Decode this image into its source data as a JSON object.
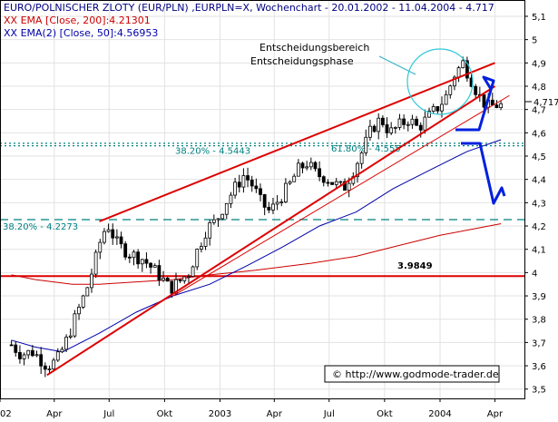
{
  "header": {
    "title": "EURO/POLNISCHER ZLOTY (EUR/PLN) ,EURPLN=X, Wochenchart - 20.01.2002 - 11.04.2004 - 4.717",
    "ema200": "EMA [Close, 200]:4.21301",
    "ema50": "EMA(2) [Close, 50]:4.56953",
    "ema_prefix": "XX"
  },
  "chart_data": {
    "type": "line",
    "title": "EURO/POLNISCHER ZLOTY (EUR/PLN) ,EURPLN=X, Wochenchart - 20.01.2002 - 11.04.2004 - 4.717",
    "xlabel": "",
    "ylabel": "",
    "ylim": [
      3.46,
      5.17
    ],
    "y_ticks": [
      3.5,
      3.6,
      3.7,
      3.8,
      3.9,
      4,
      4.1,
      4.2,
      4.3,
      4.4,
      4.5,
      4.6,
      4.7,
      4.8,
      4.9,
      5,
      5.1
    ],
    "y_tick_labels": [
      "3,5",
      "3,6",
      "3,7",
      "3,8",
      "3,9",
      "4",
      "4,1",
      "4,2",
      "4,3",
      "4,4",
      "4,5",
      "4,6",
      "4,7",
      "4,8",
      "4,9",
      "5",
      "5,1"
    ],
    "x_range": [
      "2002-01-01",
      "2004-05-20"
    ],
    "x_ticks": [
      {
        "date": "2002-01-01",
        "label": "2002"
      },
      {
        "date": "2002-04-01",
        "label": "Apr"
      },
      {
        "date": "2002-07-01",
        "label": "Jul"
      },
      {
        "date": "2002-10-01",
        "label": "Okt"
      },
      {
        "date": "2003-01-01",
        "label": "2003"
      },
      {
        "date": "2003-04-01",
        "label": "Apr"
      },
      {
        "date": "2003-07-01",
        "label": "Jul"
      },
      {
        "date": "2003-10-01",
        "label": "Okt"
      },
      {
        "date": "2004-01-01",
        "label": "2004"
      },
      {
        "date": "2004-04-01",
        "label": "Apr"
      }
    ],
    "last_value": "4,717",
    "price_path": [
      [
        "2002-01-20",
        3.69
      ],
      [
        "2002-02-05",
        3.65
      ],
      [
        "2002-02-25",
        3.66
      ],
      [
        "2002-03-20",
        3.6
      ],
      [
        "2002-04-05",
        3.62
      ],
      [
        "2002-04-20",
        3.7
      ],
      [
        "2002-05-05",
        3.8
      ],
      [
        "2002-05-25",
        3.93
      ],
      [
        "2002-06-08",
        4.05
      ],
      [
        "2002-06-20",
        4.17
      ],
      [
        "2002-06-30",
        4.2
      ],
      [
        "2002-07-15",
        4.12
      ],
      [
        "2002-08-05",
        4.08
      ],
      [
        "2002-08-25",
        4.06
      ],
      [
        "2002-09-10",
        4.02
      ],
      [
        "2002-09-25",
        3.98
      ],
      [
        "2002-10-10",
        3.93
      ],
      [
        "2002-10-25",
        3.96
      ],
      [
        "2002-11-10",
        4.0
      ],
      [
        "2002-11-25",
        4.1
      ],
      [
        "2002-12-10",
        4.19
      ],
      [
        "2002-12-25",
        4.22
      ],
      [
        "2003-01-10",
        4.3
      ],
      [
        "2003-01-25",
        4.36
      ],
      [
        "2003-02-10",
        4.42
      ],
      [
        "2003-02-25",
        4.37
      ],
      [
        "2003-03-10",
        4.3
      ],
      [
        "2003-03-25",
        4.26
      ],
      [
        "2003-04-10",
        4.32
      ],
      [
        "2003-04-25",
        4.37
      ],
      [
        "2003-05-10",
        4.44
      ],
      [
        "2003-05-25",
        4.47
      ],
      [
        "2003-06-10",
        4.42
      ],
      [
        "2003-06-25",
        4.41
      ],
      [
        "2003-07-10",
        4.38
      ],
      [
        "2003-07-25",
        4.36
      ],
      [
        "2003-08-10",
        4.44
      ],
      [
        "2003-08-25",
        4.52
      ],
      [
        "2003-09-10",
        4.62
      ],
      [
        "2003-09-25",
        4.66
      ],
      [
        "2003-10-10",
        4.6
      ],
      [
        "2003-10-25",
        4.63
      ],
      [
        "2003-11-10",
        4.66
      ],
      [
        "2003-11-25",
        4.62
      ],
      [
        "2003-12-10",
        4.66
      ],
      [
        "2003-12-25",
        4.7
      ],
      [
        "2004-01-10",
        4.75
      ],
      [
        "2004-01-25",
        4.85
      ],
      [
        "2004-02-08",
        4.9
      ],
      [
        "2004-02-20",
        4.84
      ],
      [
        "2004-03-05",
        4.76
      ],
      [
        "2004-03-20",
        4.71
      ],
      [
        "2004-04-05",
        4.72
      ],
      [
        "2004-04-11",
        4.717
      ]
    ],
    "series": [
      {
        "name": "EMA [Close, 200]:4.21301",
        "color": "#cc0000",
        "points": [
          [
            "2002-01-20",
            3.99
          ],
          [
            "2002-03-01",
            3.97
          ],
          [
            "2002-05-01",
            3.95
          ],
          [
            "2002-06-15",
            3.95
          ],
          [
            "2002-08-15",
            3.96
          ],
          [
            "2002-10-15",
            3.97
          ],
          [
            "2002-12-15",
            3.99
          ],
          [
            "2003-03-01",
            4.01
          ],
          [
            "2003-06-01",
            4.04
          ],
          [
            "2003-08-15",
            4.07
          ],
          [
            "2003-10-15",
            4.11
          ],
          [
            "2004-01-01",
            4.16
          ],
          [
            "2004-04-11",
            4.21
          ]
        ]
      },
      {
        "name": "EMA(2) [Close, 50]:4.56953",
        "color": "#0000aa",
        "points": [
          [
            "2002-01-20",
            3.71
          ],
          [
            "2002-03-01",
            3.68
          ],
          [
            "2002-04-15",
            3.66
          ],
          [
            "2002-06-15",
            3.74
          ],
          [
            "2002-08-15",
            3.83
          ],
          [
            "2002-10-15",
            3.9
          ],
          [
            "2002-12-15",
            3.95
          ],
          [
            "2003-02-15",
            4.03
          ],
          [
            "2003-04-15",
            4.11
          ],
          [
            "2003-06-15",
            4.2
          ],
          [
            "2003-08-15",
            4.26
          ],
          [
            "2003-10-15",
            4.36
          ],
          [
            "2003-12-15",
            4.44
          ],
          [
            "2004-02-15",
            4.52
          ],
          [
            "2004-04-11",
            4.57
          ]
        ]
      }
    ],
    "trendlines": [
      {
        "kind": "upper-channel",
        "color": "#dd0000",
        "from": [
          "2002-06-15",
          4.22
        ],
        "to": [
          "2004-04-01",
          4.9
        ]
      },
      {
        "kind": "lower-channel",
        "color": "#dd0000",
        "from": [
          "2002-03-20",
          3.56
        ],
        "to": [
          "2004-04-01",
          4.8
        ]
      },
      {
        "kind": "thin-support",
        "color": "#dd0000",
        "from": [
          "2002-10-15",
          3.9
        ],
        "to": [
          "2004-04-25",
          4.76
        ]
      }
    ],
    "horizontal_levels": [
      {
        "value": 3.9849,
        "label": "3.9849",
        "style": "solid",
        "color": "#dd0000"
      },
      {
        "value": 4.2273,
        "label": "38.20% - 4.2273",
        "style": "dashed",
        "color": "#008080"
      },
      {
        "value": 4.5443,
        "label": "38.20% - 4.5443",
        "style": "dotted",
        "color": "#008080"
      },
      {
        "value": 4.555,
        "label": "61.80% - 4.555",
        "style": "dotted",
        "color": "#008080"
      }
    ],
    "annotations": [
      "Entscheidungsbereich",
      "Entscheidungsphase"
    ],
    "watermark": "© http://www.godmode-trader.de"
  }
}
